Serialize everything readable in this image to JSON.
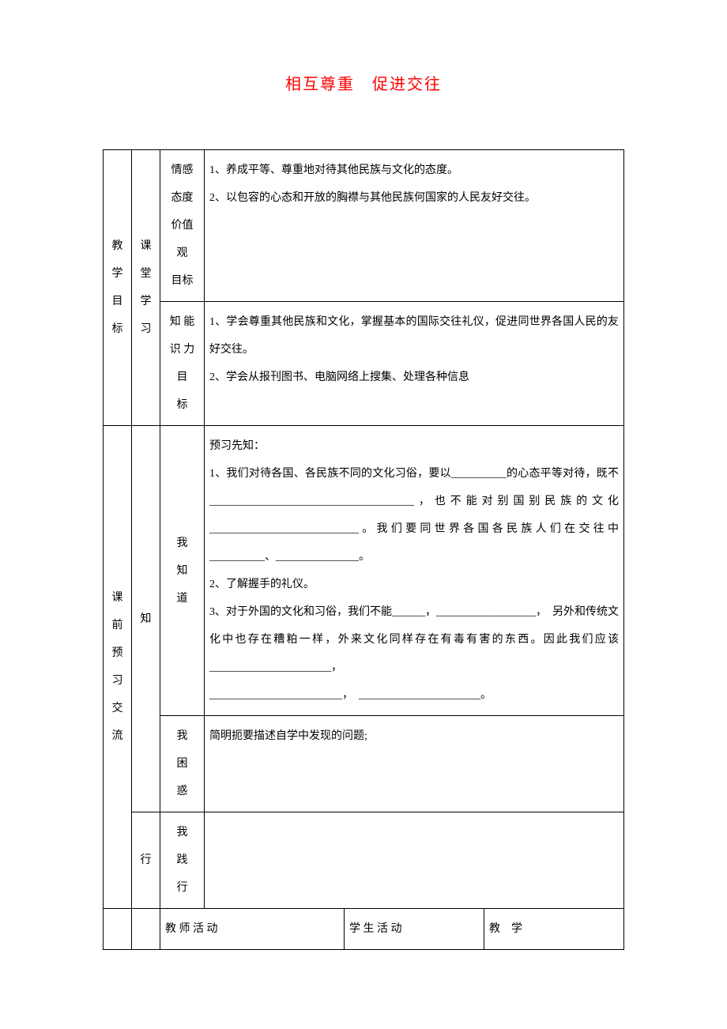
{
  "title": "相互尊重　促进交往",
  "table": {
    "section1": {
      "rowLabel": "教学目标",
      "subLabel1": "课堂学习",
      "cell1Label": "情感态度价值观目标",
      "cell1Content": "1、养成平等、尊重地对待其他民族与文化的态度。\n2、以包容的心态和开放的胸襟与其他民族何国家的人民友好交往。",
      "cell2Label": "知识能力目标",
      "cell2Content": "1、学会尊重其他民族和文化，掌握基本的国际交往礼仪，促进同世界各国人民的友好交往。\n2、学会从报刊图书、电脑网络上搜集、处理各种信息"
    },
    "section2": {
      "rowLabel": "课前预习交流",
      "subLabel1": "知",
      "cell1Label": "我知道",
      "cell1Content": "预习先知：\n1、我们对待各国、各民族不同的文化习俗，要以__________的心态平等对待，既不_____________________________________，也不能对别国别民族的文化___________________________。我们要同世界各国各民族人们在交往中__________、_______________。\n2、了解握手的礼仪。\n3、对于外国的文化和习俗，我们不能______，__________________，　另外和传统文化中也存在糟粕一样，外来文化同样存在有毒有害的东西。因此我们应该______________________，　________________________，　______________________。",
      "cell2Label": "我困惑",
      "cell2Content": "简明扼要描述自学中发现的问题;",
      "subLabel2": "行",
      "cell3Label": "我践行",
      "cell3Content": ""
    },
    "section3": {
      "header1": "教 师 活 动",
      "header2": "学 生 活 动",
      "header3": "教　学"
    }
  },
  "colors": {
    "title": "#ff0000",
    "text": "#000000",
    "border": "#000000",
    "background": "#ffffff"
  }
}
